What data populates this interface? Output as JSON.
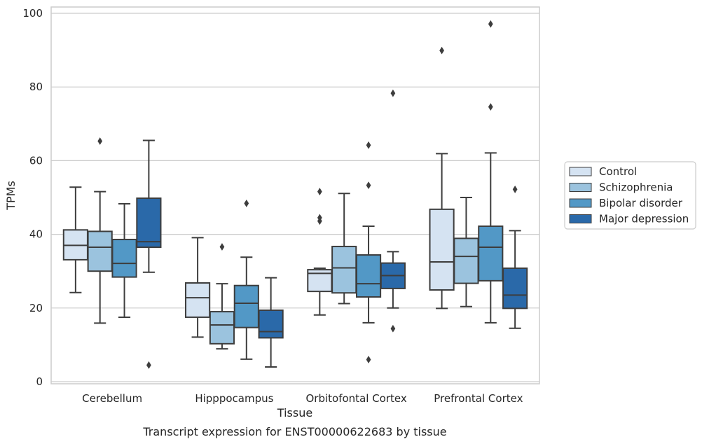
{
  "chart_data": {
    "type": "box",
    "title": "Transcript expression for ENST00000622683 by tissue",
    "xlabel": "Tissue",
    "ylabel": "TPMs",
    "ylim": [
      0,
      100
    ],
    "yticks": [
      0,
      20,
      40,
      60,
      80,
      100
    ],
    "grid": true,
    "legend_position": "right",
    "categories": [
      "Cerebellum",
      "Hipppocampus",
      "Orbitofontal Cortex",
      "Prefrontal Cortex"
    ],
    "colors": {
      "Control": "#d5e3f2",
      "Schizophrenia": "#9bc3de",
      "Bipolar disorder": "#5298c6",
      "Major depression": "#2a69a9"
    },
    "series": [
      {
        "name": "Control",
        "boxes": [
          {
            "whislo": 24.2,
            "q1": 33.1,
            "med": 37.0,
            "q3": 41.2,
            "whishi": 52.8,
            "fliers": []
          },
          {
            "whislo": 12.1,
            "q1": 17.5,
            "med": 22.8,
            "q3": 26.8,
            "whishi": 39.1,
            "fliers": []
          },
          {
            "whislo": 18.1,
            "q1": 24.5,
            "med": 29.4,
            "q3": 30.4,
            "whishi": 30.8,
            "fliers": [
              43.6,
              44.5,
              51.6
            ]
          },
          {
            "whislo": 19.9,
            "q1": 24.9,
            "med": 32.5,
            "q3": 46.8,
            "whishi": 61.9,
            "fliers": [
              89.9
            ]
          }
        ]
      },
      {
        "name": "Schizophrenia",
        "boxes": [
          {
            "whislo": 15.9,
            "q1": 30.0,
            "med": 36.5,
            "q3": 40.8,
            "whishi": 51.6,
            "fliers": [
              65.3
            ]
          },
          {
            "whislo": 8.9,
            "q1": 10.3,
            "med": 15.4,
            "q3": 19.0,
            "whishi": 26.6,
            "fliers": [
              36.6
            ]
          },
          {
            "whislo": 21.2,
            "q1": 24.1,
            "med": 30.9,
            "q3": 36.7,
            "whishi": 51.1,
            "fliers": []
          },
          {
            "whislo": 20.4,
            "q1": 26.7,
            "med": 34.0,
            "q3": 38.9,
            "whishi": 50.0,
            "fliers": []
          }
        ]
      },
      {
        "name": "Bipolar disorder",
        "boxes": [
          {
            "whislo": 17.5,
            "q1": 28.4,
            "med": 32.1,
            "q3": 38.6,
            "whishi": 48.3,
            "fliers": []
          },
          {
            "whislo": 6.1,
            "q1": 14.7,
            "med": 21.3,
            "q3": 26.1,
            "whishi": 33.8,
            "fliers": [
              48.4
            ]
          },
          {
            "whislo": 16.0,
            "q1": 23.0,
            "med": 26.6,
            "q3": 34.4,
            "whishi": 42.2,
            "fliers": [
              6.0,
              53.3,
              64.2
            ]
          },
          {
            "whislo": 16.0,
            "q1": 27.4,
            "med": 36.5,
            "q3": 42.2,
            "whishi": 62.1,
            "fliers": [
              74.6,
              97.1
            ]
          }
        ]
      },
      {
        "name": "Major depression",
        "boxes": [
          {
            "whislo": 29.7,
            "q1": 36.5,
            "med": 38.0,
            "q3": 49.8,
            "whishi": 65.5,
            "fliers": [
              4.5
            ]
          },
          {
            "whislo": 4.0,
            "q1": 11.9,
            "med": 13.6,
            "q3": 19.4,
            "whishi": 28.2,
            "fliers": []
          },
          {
            "whislo": 20.0,
            "q1": 25.3,
            "med": 28.8,
            "q3": 32.2,
            "whishi": 35.3,
            "fliers": [
              14.4,
              78.3
            ]
          },
          {
            "whislo": 14.5,
            "q1": 19.9,
            "med": 23.5,
            "q3": 30.8,
            "whishi": 41.0,
            "fliers": [
              52.2
            ]
          }
        ]
      }
    ]
  }
}
